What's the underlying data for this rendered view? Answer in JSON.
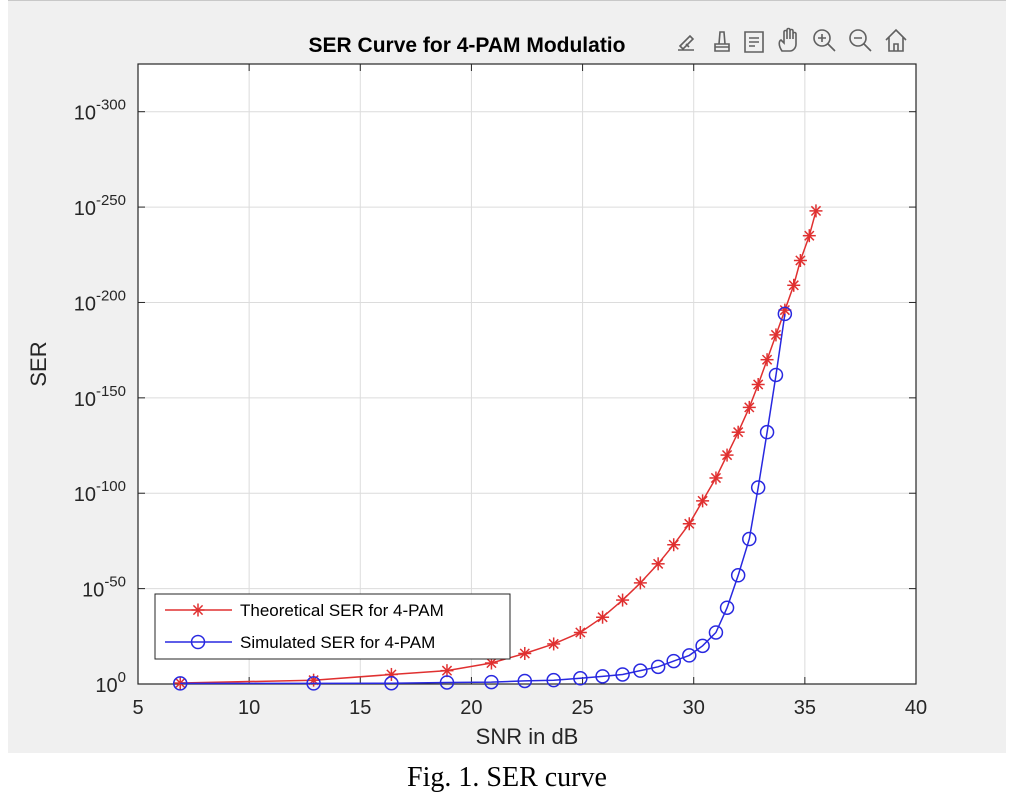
{
  "caption": "Fig. 1. SER curve",
  "toolbar": {
    "icons": [
      "data-tips-icon",
      "brush-icon",
      "data-cursor-icon",
      "pan-hand-icon",
      "zoom-in-icon",
      "zoom-out-icon",
      "home-icon"
    ]
  },
  "chart_data": {
    "type": "line",
    "title": "SER Curve for 4-PAM Modulatio",
    "xlabel": "SNR in dB",
    "ylabel": "SER",
    "xlim": [
      5,
      40
    ],
    "ylim_log10": [
      -325,
      0
    ],
    "yscale": "log",
    "grid": true,
    "minor_grid": true,
    "legend_position": "bottom-left",
    "xticks": [
      5,
      10,
      15,
      20,
      25,
      30,
      35,
      40
    ],
    "xtick_labels": [
      "5",
      "10",
      "15",
      "20",
      "25",
      "30",
      "35",
      "40"
    ],
    "yticks_exponent": [
      0,
      -50,
      -100,
      -150,
      -200,
      -250,
      -300
    ],
    "ytick_base": "10",
    "series": [
      {
        "name": "Theoretical SER for 4-PAM",
        "color": "#e03030",
        "marker": "asterisk",
        "x": [
          6.9,
          12.9,
          16.4,
          18.9,
          20.9,
          22.4,
          23.7,
          24.9,
          25.9,
          26.8,
          27.6,
          28.4,
          29.1,
          29.8,
          30.4,
          31.0,
          31.5,
          32.0,
          32.5,
          32.9,
          33.3,
          33.7,
          34.1,
          34.5,
          34.8,
          35.2,
          35.5
        ],
        "y_log10": [
          -0.5,
          -2,
          -5,
          -7,
          -11,
          -16,
          -21,
          -27,
          -35,
          -44,
          -53,
          -63,
          -73,
          -84,
          -96,
          -108,
          -120,
          -132,
          -145,
          -157,
          -170,
          -183,
          -196,
          -209,
          -222,
          -235,
          -248
        ]
      },
      {
        "name": "Simulated SER for 4-PAM",
        "color": "#2828e0",
        "marker": "circle",
        "x": [
          6.9,
          12.9,
          16.4,
          18.9,
          20.9,
          22.4,
          23.7,
          24.9,
          25.9,
          26.8,
          27.6,
          28.4,
          29.1,
          29.8,
          30.4,
          31.0,
          31.5,
          32.0,
          32.5,
          32.9,
          33.3,
          33.7,
          34.1
        ],
        "y_log10": [
          -0.3,
          -0.3,
          -0.4,
          -0.8,
          -1,
          -1.6,
          -2,
          -3,
          -4,
          -5,
          -7,
          -9,
          -12,
          -15,
          -20,
          -27,
          -40,
          -57,
          -76,
          -103,
          -132,
          -162,
          -194
        ]
      }
    ]
  }
}
